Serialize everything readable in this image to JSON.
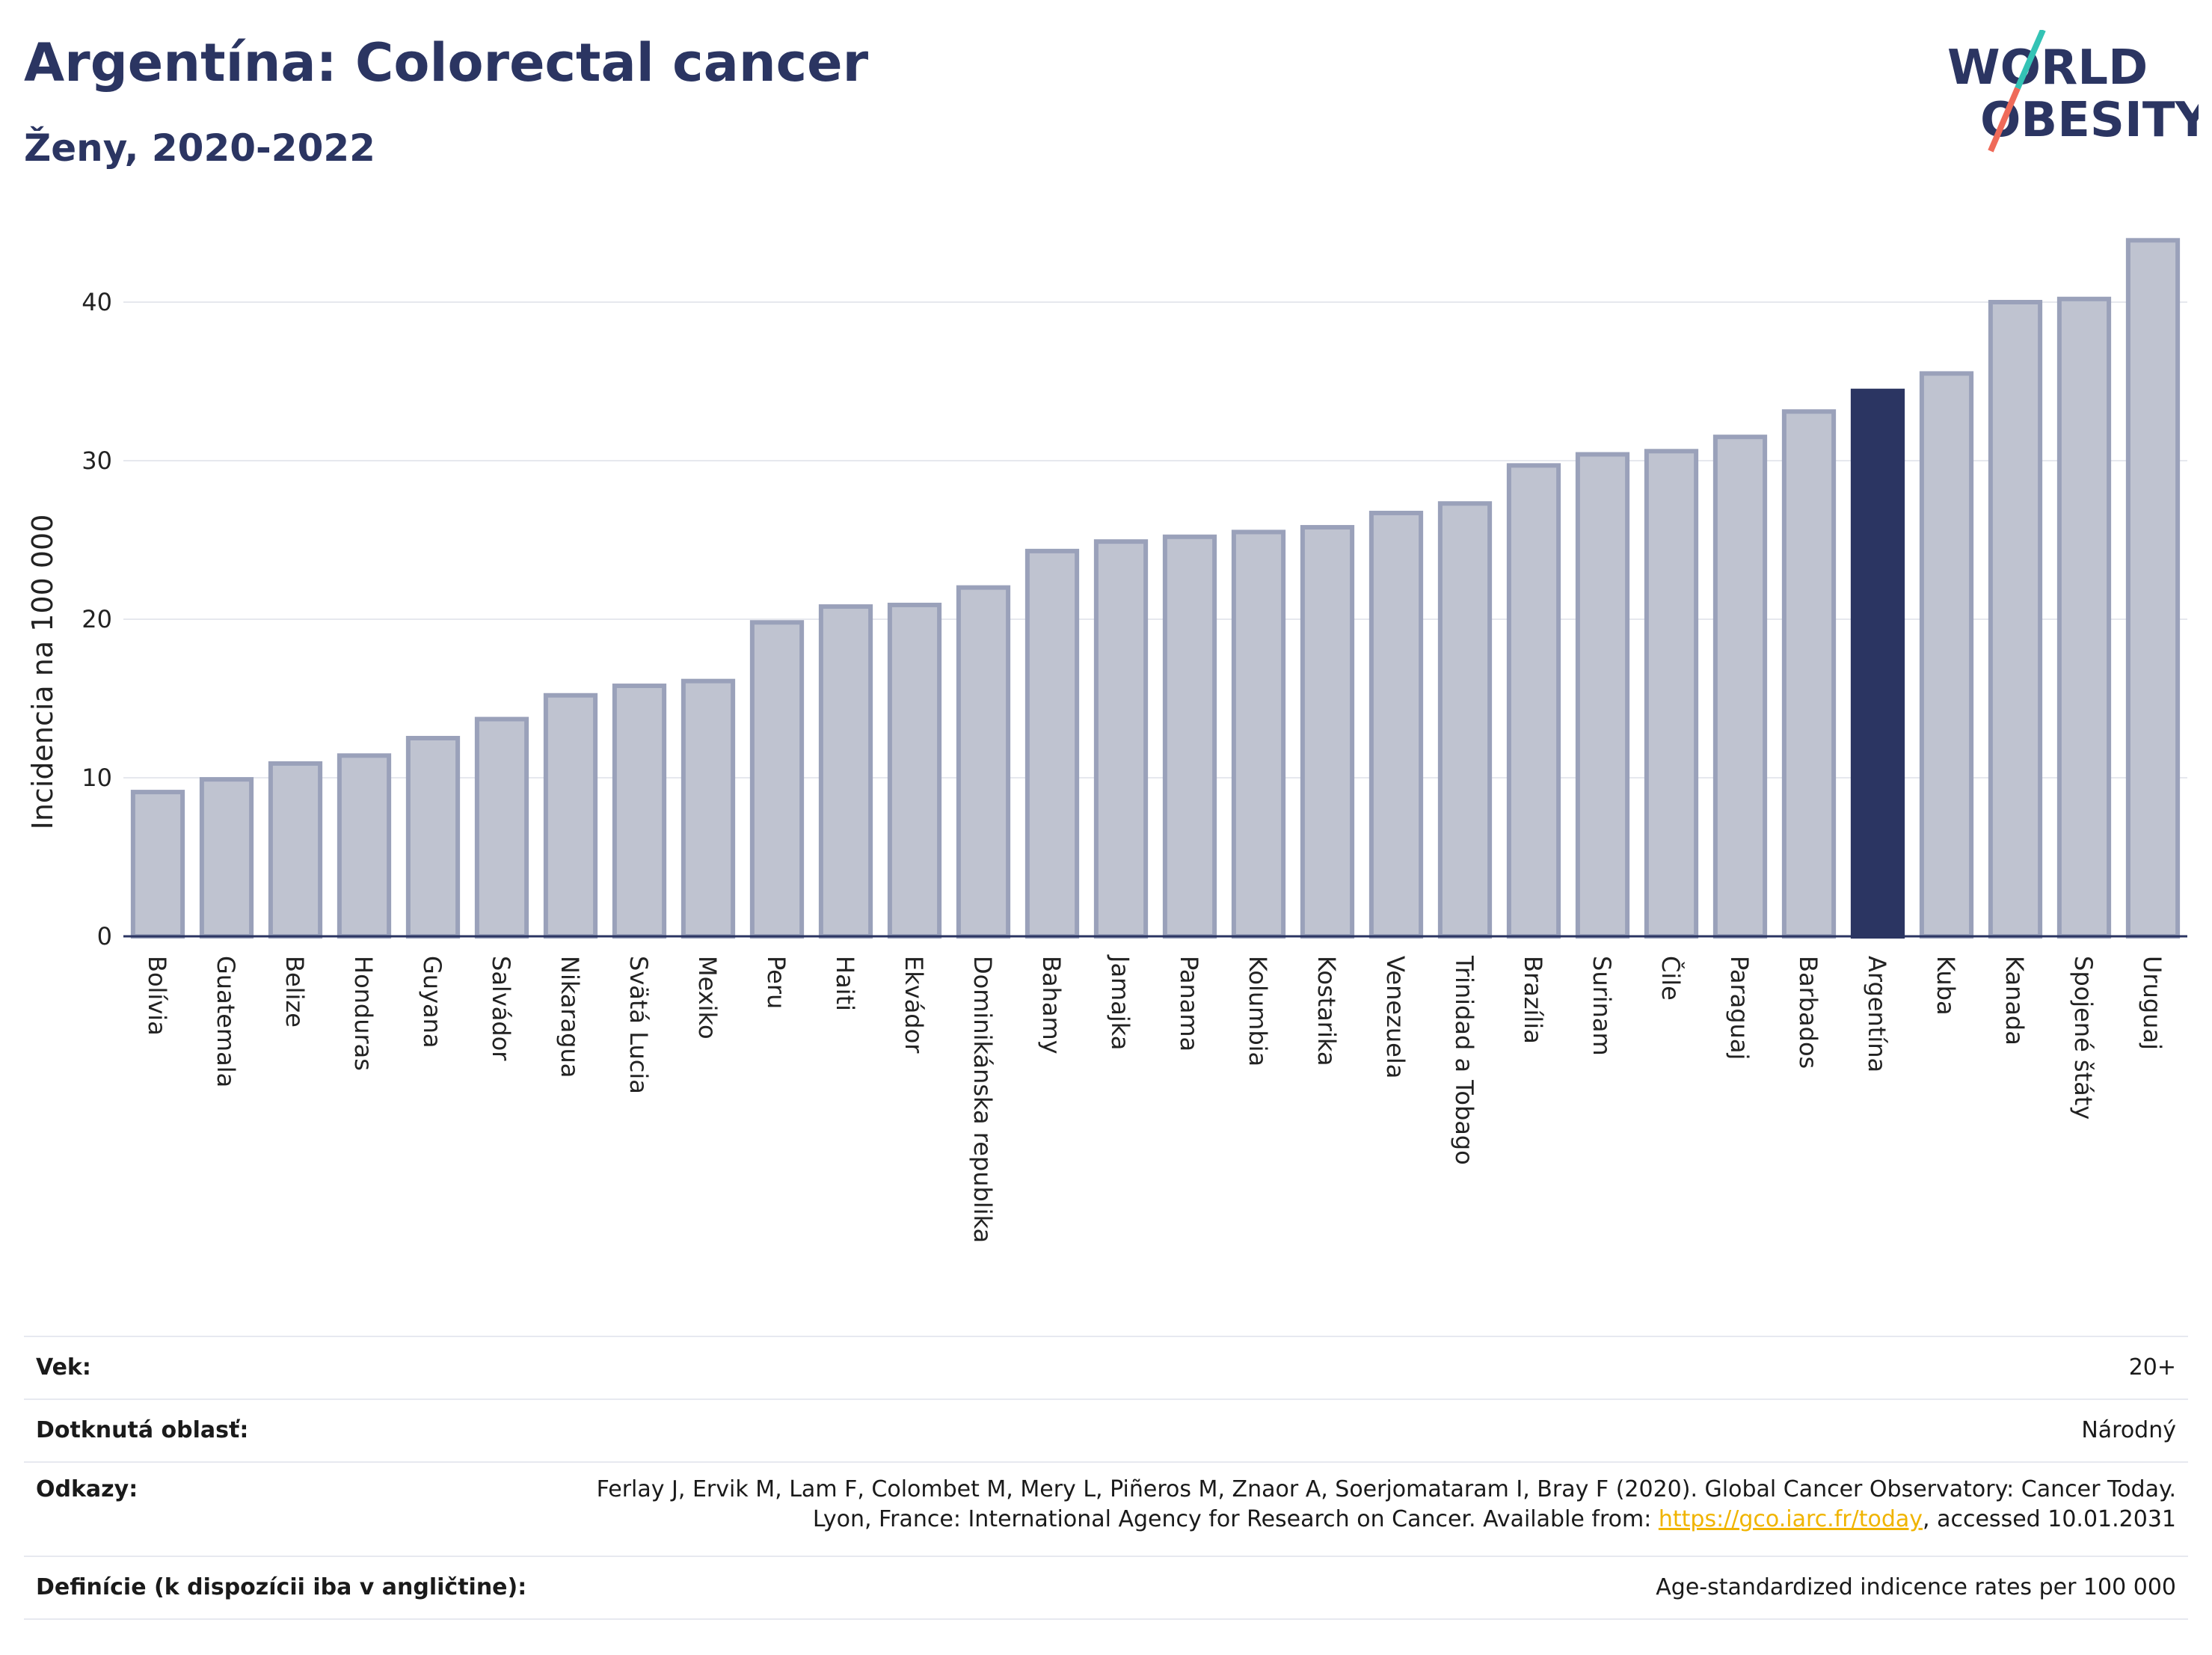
{
  "header": {
    "title": "Argentína: Colorectal cancer",
    "subtitle": "Ženy, 2020-2022",
    "logo_line1": "WORLD",
    "logo_line2": "OBESITY"
  },
  "colors": {
    "bar": "#bfc3d0",
    "bar_border": "#9aa1ba",
    "highlight": "#2b3562",
    "logo_text": "#2b3562",
    "logo_slash_top": "#34c3b5",
    "logo_slash_bottom": "#ef6a59",
    "link": "#f0b400"
  },
  "chart_data": {
    "type": "bar",
    "title": "Argentína: Colorectal cancer",
    "subtitle": "Ženy, 2020-2022",
    "ylabel": "Incidencia na 100 000",
    "xlabel": "",
    "ylim": [
      0,
      45
    ],
    "yticks": [
      0,
      10,
      20,
      30,
      40
    ],
    "grid": true,
    "highlight": "Argentína",
    "categories": [
      "Bolívia",
      "Guatemala",
      "Belize",
      "Honduras",
      "Guyana",
      "Salvádor",
      "Nikaragua",
      "Svätá Lucia",
      "Mexiko",
      "Peru",
      "Haiti",
      "Ekvádor",
      "Dominikánska republika",
      "Bahamy",
      "Jamajka",
      "Panama",
      "Kolumbia",
      "Kostarika",
      "Venezuela",
      "Trinidad a Tobago",
      "Brazília",
      "Surinam",
      "Čile",
      "Paraguaj",
      "Barbados",
      "Argentína",
      "Kuba",
      "Kanada",
      "Spojené štáty",
      "Uruguaj"
    ],
    "values": [
      9.1,
      9.9,
      10.9,
      11.4,
      12.5,
      13.7,
      15.2,
      15.8,
      16.1,
      19.8,
      20.8,
      20.9,
      22.0,
      24.3,
      24.9,
      25.2,
      25.5,
      25.8,
      26.7,
      27.3,
      29.7,
      30.4,
      30.6,
      31.5,
      33.1,
      34.4,
      35.5,
      40.0,
      40.2,
      43.9
    ]
  },
  "info": {
    "age_label": "Vek:",
    "age_value": "20+",
    "area_label": "Dotknutá oblasť:",
    "area_value": "Národný",
    "refs_label": "Odkazy:",
    "refs_text_1": "Ferlay J, Ervik M, Lam F, Colombet M, Mery L, Piñeros M, Znaor A, Soerjomataram I, Bray F (2020). Global Cancer Observatory: Cancer Today. Lyon, France: International Agency for Research on Cancer. Available from: ",
    "refs_link": "https://gco.iarc.fr/today",
    "refs_text_2": ", accessed 10.01.2031",
    "def_label": "Definície (k dispozícii iba v angličtine):",
    "def_value": "Age-standardized indicence rates per 100 000"
  }
}
